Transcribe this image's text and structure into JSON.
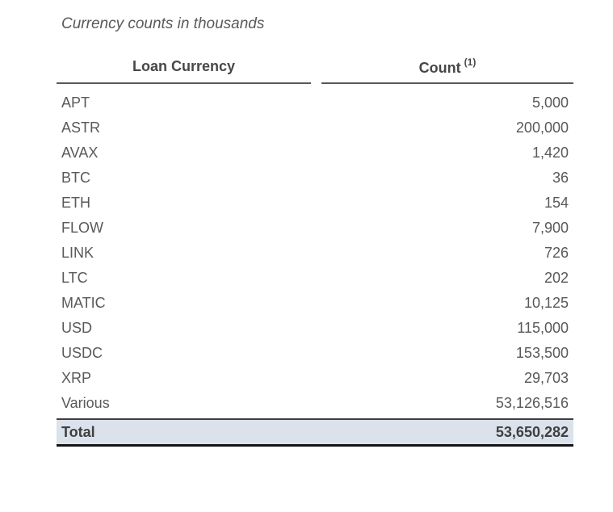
{
  "title": "Currency counts in thousands",
  "table": {
    "headers": {
      "currency": "Loan Currency",
      "count": "Count",
      "count_superscript": "(1)"
    },
    "rows": [
      {
        "currency": "APT",
        "count": "5,000"
      },
      {
        "currency": "ASTR",
        "count": "200,000"
      },
      {
        "currency": "AVAX",
        "count": "1,420"
      },
      {
        "currency": "BTC",
        "count": "36"
      },
      {
        "currency": "ETH",
        "count": "154"
      },
      {
        "currency": "FLOW",
        "count": "7,900"
      },
      {
        "currency": "LINK",
        "count": "726"
      },
      {
        "currency": "LTC",
        "count": "202"
      },
      {
        "currency": "MATIC",
        "count": "10,125"
      },
      {
        "currency": "USD",
        "count": "115,000"
      },
      {
        "currency": "USDC",
        "count": "153,500"
      },
      {
        "currency": "XRP",
        "count": "29,703"
      },
      {
        "currency": "Various",
        "count": "53,126,516"
      }
    ],
    "total": {
      "label": "Total",
      "count": "53,650,282"
    }
  },
  "colors": {
    "body_text": "#595959",
    "header_text": "#474747",
    "header_rule": "#595959",
    "total_background": "#dbe2ec",
    "total_border_top": "#3d3d3d",
    "total_border_bottom": "#141414"
  }
}
